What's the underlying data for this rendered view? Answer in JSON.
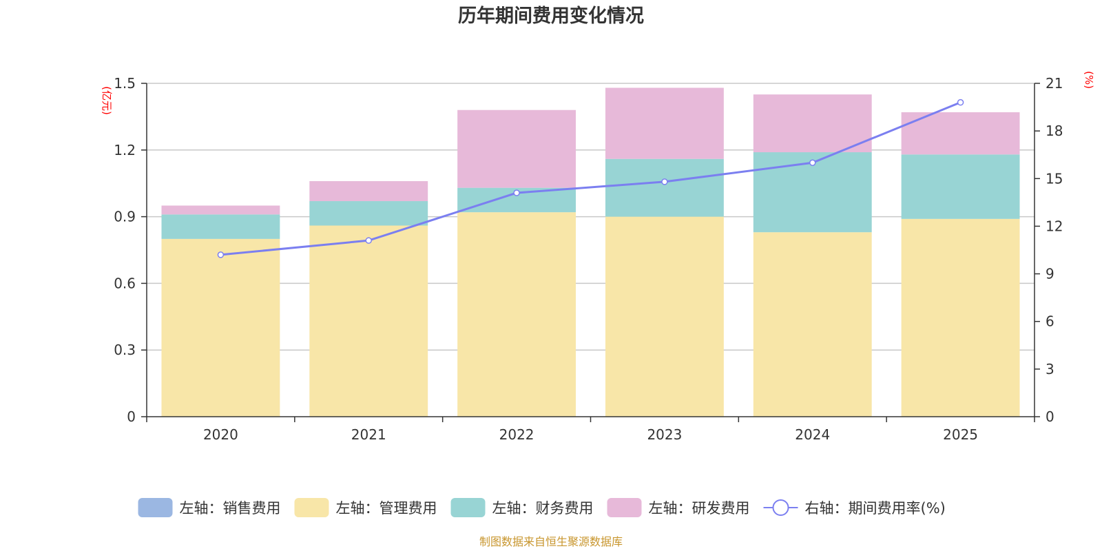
{
  "chart_data": {
    "type": "bar",
    "stacked": true,
    "title": "历年期间费用变化情况",
    "categories": [
      "2020",
      "2021",
      "2022",
      "2023",
      "2024",
      "2025"
    ],
    "left_axis": {
      "unit": "(亿元)",
      "ylim": [
        0,
        1.5
      ],
      "ticks": [
        "0",
        "0.3",
        "0.6",
        "0.9",
        "1.2",
        "1.5"
      ]
    },
    "right_axis": {
      "unit": "(%)",
      "ylim": [
        0,
        21
      ],
      "ticks": [
        "0",
        "3",
        "6",
        "9",
        "12",
        "15",
        "18",
        "21"
      ]
    },
    "series": [
      {
        "name": "左轴：销售费用",
        "axis": "left",
        "type": "bar",
        "color": "#9bb7e2",
        "values": [
          0,
          0,
          0,
          0,
          0,
          0
        ]
      },
      {
        "name": "左轴：管理费用",
        "axis": "left",
        "type": "bar",
        "color": "#f8e6a8",
        "values": [
          0.8,
          0.86,
          0.92,
          0.9,
          0.83,
          0.89
        ]
      },
      {
        "name": "左轴：财务费用",
        "axis": "left",
        "type": "bar",
        "color": "#98d4d4",
        "values": [
          0.11,
          0.11,
          0.11,
          0.26,
          0.36,
          0.29
        ]
      },
      {
        "name": "左轴：研发费用",
        "axis": "left",
        "type": "bar",
        "color": "#e7b9d9",
        "values": [
          0.04,
          0.09,
          0.35,
          0.32,
          0.26,
          0.19
        ]
      },
      {
        "name": "右轴：期间费用率(%)",
        "axis": "right",
        "type": "line",
        "color": "#7b7ff0",
        "values": [
          10.2,
          11.1,
          14.1,
          14.8,
          16.0,
          19.8
        ]
      }
    ],
    "source": "制图数据来自恒生聚源数据库"
  }
}
